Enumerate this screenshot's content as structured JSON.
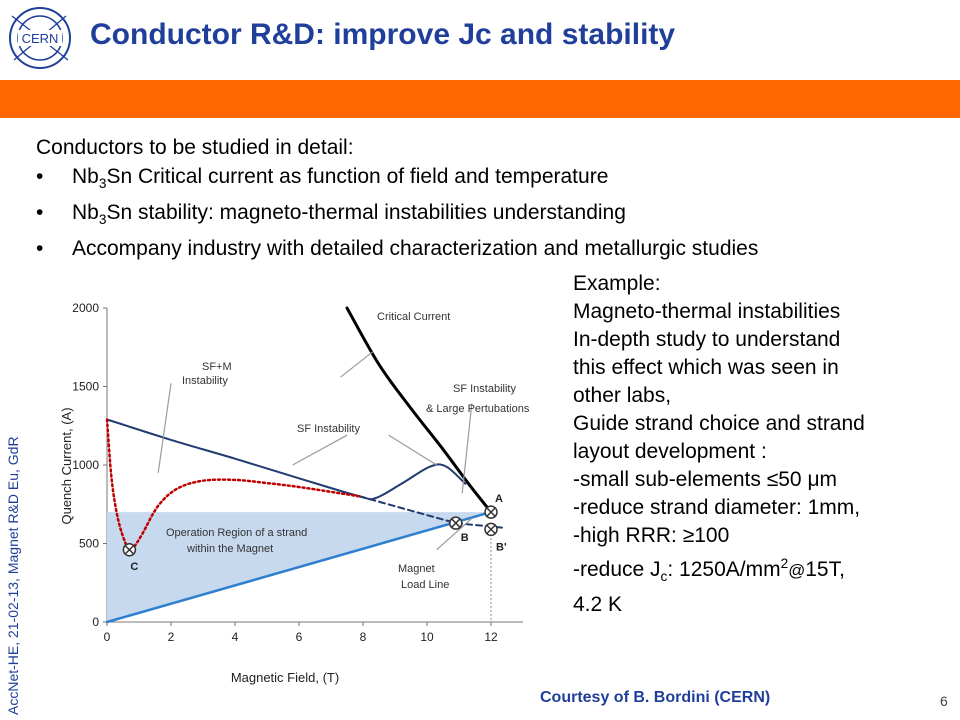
{
  "header": {
    "logo_text": "CERN",
    "title": "Conductor R&D:  improve Jc and stability",
    "colors": {
      "title": "#1f3f9a",
      "accent_bar": "#ff6600"
    }
  },
  "intro": "Conductors to be studied in detail:",
  "bullets": [
    {
      "pre": "Nb",
      "sub": "3",
      "post": "Sn Critical current as function of field and temperature"
    },
    {
      "pre": "Nb",
      "sub": "3",
      "post": "Sn stability: magneto-thermal instabilities understanding"
    },
    {
      "text": "Accompany industry with detailed characterization and metallurgic studies"
    }
  ],
  "example": {
    "lines": [
      "Example:",
      "Magneto-thermal instabilities",
      "In-depth study to understand",
      "this effect which was seen in",
      "other labs,",
      "Guide strand choice and strand",
      "layout development :",
      "-small sub-elements ≤50 μm",
      "-reduce strand diameter: 1mm,",
      "-high RRR: ≥100"
    ],
    "jc": {
      "pre": "-reduce J",
      "sub": "c",
      "mid": ": 1250A/mm",
      "sup": "2",
      "at": "@",
      "post": "15T,"
    },
    "last_line": "4.2 K"
  },
  "side_text": "AccNet-HE, 21-02-13, Magnet R&D Eu, GdR",
  "courtesy": "Courtesy of B. Bordini (CERN)",
  "page_number": "6",
  "chart_data": {
    "type": "line",
    "xlabel": "Magnetic Field, (T)",
    "ylabel": "Quench Current, (A)",
    "xlim": [
      0,
      13
    ],
    "ylim": [
      0,
      2000
    ],
    "x_ticks": [
      0,
      2,
      4,
      6,
      8,
      10,
      12
    ],
    "y_ticks": [
      0,
      500,
      1000,
      1500,
      2000
    ],
    "grid": false,
    "series": [
      {
        "style": "solid-black-thick",
        "color": "#000000",
        "points": [
          [
            7.5,
            2000
          ],
          [
            8.5,
            1640
          ],
          [
            9.5,
            1360
          ],
          [
            10.5,
            1100
          ],
          [
            11.3,
            880
          ],
          [
            12,
            700
          ]
        ]
      },
      {
        "style": "solid-navy",
        "color": "#1f3b6f",
        "points": [
          [
            0,
            1290
          ],
          [
            2,
            1160
          ],
          [
            4,
            1040
          ],
          [
            6,
            915
          ],
          [
            7.9,
            800
          ],
          [
            8.4,
            790
          ],
          [
            9.2,
            880
          ],
          [
            10.1,
            990
          ],
          [
            10.6,
            990
          ],
          [
            11.2,
            880
          ]
        ]
      },
      {
        "style": "dashed-navy",
        "color": "#1f3b6f",
        "points": [
          [
            7.9,
            800
          ],
          [
            10.9,
            630
          ],
          [
            12.4,
            600
          ]
        ]
      },
      {
        "style": "dotted-red",
        "color": "#c00000",
        "points": [
          [
            0,
            1290
          ],
          [
            0.15,
            900
          ],
          [
            0.35,
            650
          ],
          [
            0.6,
            490
          ],
          [
            0.7,
            460
          ],
          [
            0.85,
            480
          ],
          [
            1.1,
            560
          ],
          [
            1.6,
            740
          ],
          [
            2.2,
            850
          ],
          [
            3,
            900
          ],
          [
            4,
            905
          ],
          [
            5,
            885
          ],
          [
            6,
            860
          ],
          [
            7.9,
            800
          ]
        ]
      },
      {
        "style": "load-line-blue",
        "color": "#2e7fd0",
        "points": [
          [
            0,
            0
          ],
          [
            12,
            700
          ]
        ]
      }
    ],
    "region": {
      "fill": "#c6d9ee",
      "points": [
        [
          0,
          0
        ],
        [
          0,
          700
        ],
        [
          12,
          700
        ],
        [
          12,
          700
        ]
      ]
    },
    "points": [
      {
        "label": "A",
        "x": 12,
        "y": 700
      },
      {
        "label": "B",
        "x": 10.9,
        "y": 630
      },
      {
        "label": "B'",
        "x": 12,
        "y": 590
      },
      {
        "label": "C",
        "x": 0.7,
        "y": 460
      }
    ],
    "annotations": {
      "critical_current": "Critical Current",
      "sfm_line1": "SF+M",
      "sfm_line2": "Instability",
      "sf_instab": "SF Instability",
      "sf_large_line1": "SF Instability",
      "sf_large_line2": "& Large Pertubations",
      "region_line1": "Operation Region of a strand",
      "region_line2": "within the Magnet",
      "load_line1": "Magnet",
      "load_line2": "Load Line"
    }
  }
}
